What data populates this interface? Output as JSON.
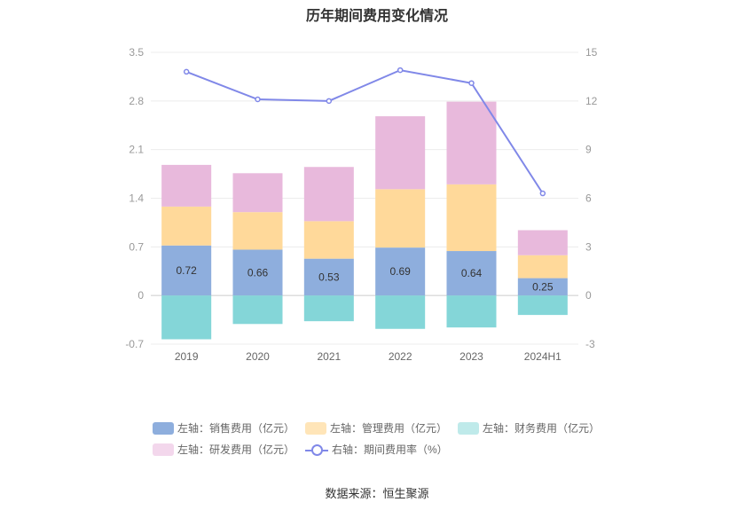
{
  "chart_data": {
    "type": "bar",
    "title": "历年期间费用变化情况",
    "categories": [
      "2019",
      "2020",
      "2021",
      "2022",
      "2023",
      "2024H1"
    ],
    "left_axis": {
      "ticks": [
        "3.5",
        "2.8",
        "2.1",
        "1.4",
        "0.7",
        "0",
        "-0.7"
      ],
      "range": [
        -0.7,
        3.5
      ]
    },
    "right_axis": {
      "ticks": [
        "15",
        "12",
        "9",
        "6",
        "3",
        "0",
        "-3"
      ],
      "range": [
        -3,
        15
      ]
    },
    "series": [
      {
        "name": "左轴：销售费用（亿元）",
        "type": "stacked-bar",
        "color": "#8eaedd",
        "values": [
          0.72,
          0.66,
          0.53,
          0.69,
          0.64,
          0.25
        ],
        "show_labels": true
      },
      {
        "name": "左轴：管理费用（亿元）",
        "type": "stacked-bar",
        "color": "#ffd99a",
        "values": [
          0.56,
          0.54,
          0.54,
          0.84,
          0.96,
          0.33
        ]
      },
      {
        "name": "左轴：财务费用（亿元）",
        "type": "stacked-bar",
        "color": "#84d6d8",
        "values": [
          -0.63,
          -0.41,
          -0.37,
          -0.48,
          -0.46,
          -0.28
        ]
      },
      {
        "name": "左轴：研发费用（亿元）",
        "type": "stacked-bar",
        "color": "#e8b9dc",
        "values": [
          0.6,
          0.56,
          0.78,
          1.05,
          1.19,
          0.36
        ]
      },
      {
        "name": "右轴：期间费用率（%）",
        "type": "line",
        "axis": "right",
        "color": "#8088e8",
        "values": [
          13.8,
          12.1,
          12.0,
          13.9,
          13.1,
          6.3
        ]
      }
    ],
    "grid": true,
    "legend_position": "bottom"
  },
  "source_note": "数据来源：恒生聚源"
}
